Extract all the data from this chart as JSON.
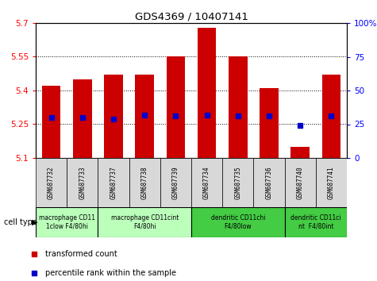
{
  "title": "GDS4369 / 10407141",
  "samples": [
    "GSM687732",
    "GSM687733",
    "GSM687737",
    "GSM687738",
    "GSM687739",
    "GSM687734",
    "GSM687735",
    "GSM687736",
    "GSM687740",
    "GSM687741"
  ],
  "transformed_counts": [
    5.42,
    5.45,
    5.47,
    5.47,
    5.55,
    5.68,
    5.55,
    5.41,
    5.15,
    5.47
  ],
  "percentile_ranks": [
    30,
    30,
    29,
    32,
    31,
    32,
    31,
    31,
    24,
    31
  ],
  "y_min": 5.1,
  "y_max": 5.7,
  "y_ticks": [
    5.1,
    5.25,
    5.4,
    5.55,
    5.7
  ],
  "y_tick_labels": [
    "5.1",
    "5.25",
    "5.4",
    "5.55",
    "5.7"
  ],
  "right_y_ticks": [
    0,
    25,
    50,
    75,
    100
  ],
  "right_y_tick_labels": [
    "0",
    "25",
    "50",
    "75",
    "100%"
  ],
  "bar_color": "#cc0000",
  "dot_color": "#0000cc",
  "bar_width": 0.6,
  "cell_type_groups": [
    {
      "label": "macrophage CD11\n1clow F4/80hi",
      "start": 0,
      "end": 2,
      "color": "#bbffbb"
    },
    {
      "label": "macrophage CD11cint\nF4/80hi",
      "start": 2,
      "end": 5,
      "color": "#bbffbb"
    },
    {
      "label": "dendritic CD11chi\nF4/80low",
      "start": 5,
      "end": 8,
      "color": "#44cc44"
    },
    {
      "label": "dendritic CD11ci\nnt  F4/80int",
      "start": 8,
      "end": 10,
      "color": "#44cc44"
    }
  ],
  "cell_type_label": "cell type",
  "legend_items": [
    {
      "color": "#cc0000",
      "label": "transformed count"
    },
    {
      "color": "#0000cc",
      "label": "percentile rank within the sample"
    }
  ],
  "background_color": "#ffffff",
  "plot_bg": "#ffffff",
  "sample_box_color": "#d8d8d8"
}
